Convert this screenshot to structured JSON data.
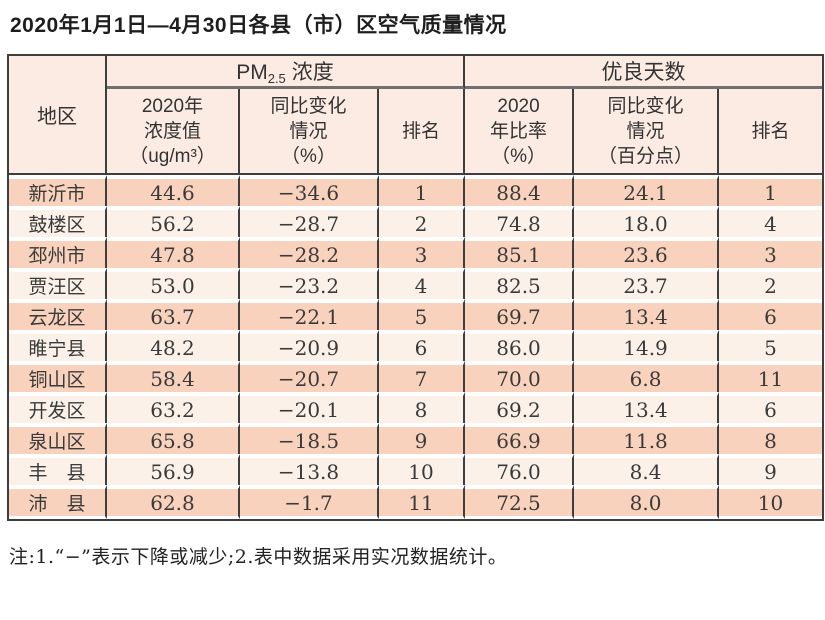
{
  "page": {
    "title": "2020年1月1日—4月30日各县（市）区空气质量情况",
    "note": "注:1.“−”表示下降或减少;2.表中数据采用实况数据统计。"
  },
  "colors": {
    "row_salmon": "#f8d2bc",
    "row_cream": "#fbf1e8",
    "header_bg": "#fcebe2",
    "border_dark": "#3e3e3e",
    "header_split_gray": "#707070"
  },
  "table": {
    "header": {
      "region": "地区",
      "pm_main": "PM",
      "pm_sub": "2.5",
      "pm_rest": "浓度",
      "good_days": "优良天数",
      "sub": {
        "pm_value": "2020年\n浓度值\n（ug/m³）",
        "pm_change": "同比变化\n情况\n（%）",
        "pm_rank": "排名",
        "gd_ratio": "2020\n年比率\n（%）",
        "gd_change": "同比变化\n情况\n（百分点）",
        "gd_rank": "排名"
      }
    },
    "columns": [
      "region",
      "pm_value",
      "pm_change",
      "pm_rank",
      "gd_ratio",
      "gd_change",
      "gd_rank"
    ],
    "rows": [
      {
        "region": "新沂市",
        "pm_value": "44.6",
        "pm_change": "−34.6",
        "pm_rank": "1",
        "gd_ratio": "88.4",
        "gd_change": "24.1",
        "gd_rank": "1"
      },
      {
        "region": "鼓楼区",
        "pm_value": "56.2",
        "pm_change": "−28.7",
        "pm_rank": "2",
        "gd_ratio": "74.8",
        "gd_change": "18.0",
        "gd_rank": "4"
      },
      {
        "region": "邳州市",
        "pm_value": "47.8",
        "pm_change": "−28.2",
        "pm_rank": "3",
        "gd_ratio": "85.1",
        "gd_change": "23.6",
        "gd_rank": "3"
      },
      {
        "region": "贾汪区",
        "pm_value": "53.0",
        "pm_change": "−23.2",
        "pm_rank": "4",
        "gd_ratio": "82.5",
        "gd_change": "23.7",
        "gd_rank": "2"
      },
      {
        "region": "云龙区",
        "pm_value": "63.7",
        "pm_change": "−22.1",
        "pm_rank": "5",
        "gd_ratio": "69.7",
        "gd_change": "13.4",
        "gd_rank": "6"
      },
      {
        "region": "睢宁县",
        "pm_value": "48.2",
        "pm_change": "−20.9",
        "pm_rank": "6",
        "gd_ratio": "86.0",
        "gd_change": "14.9",
        "gd_rank": "5"
      },
      {
        "region": "铜山区",
        "pm_value": "58.4",
        "pm_change": "−20.7",
        "pm_rank": "7",
        "gd_ratio": "70.0",
        "gd_change": "6.8",
        "gd_rank": "11"
      },
      {
        "region": "开发区",
        "pm_value": "63.2",
        "pm_change": "−20.1",
        "pm_rank": "8",
        "gd_ratio": "69.2",
        "gd_change": "13.4",
        "gd_rank": "6"
      },
      {
        "region": "泉山区",
        "pm_value": "65.8",
        "pm_change": "−18.5",
        "pm_rank": "9",
        "gd_ratio": "66.9",
        "gd_change": "11.8",
        "gd_rank": "8"
      },
      {
        "region": "丰　县",
        "pm_value": "56.9",
        "pm_change": "−13.8",
        "pm_rank": "10",
        "gd_ratio": "76.0",
        "gd_change": "8.4",
        "gd_rank": "9"
      },
      {
        "region": "沛　县",
        "pm_value": "62.8",
        "pm_change": "−1.7",
        "pm_rank": "11",
        "gd_ratio": "72.5",
        "gd_change": "8.0",
        "gd_rank": "10"
      }
    ]
  }
}
